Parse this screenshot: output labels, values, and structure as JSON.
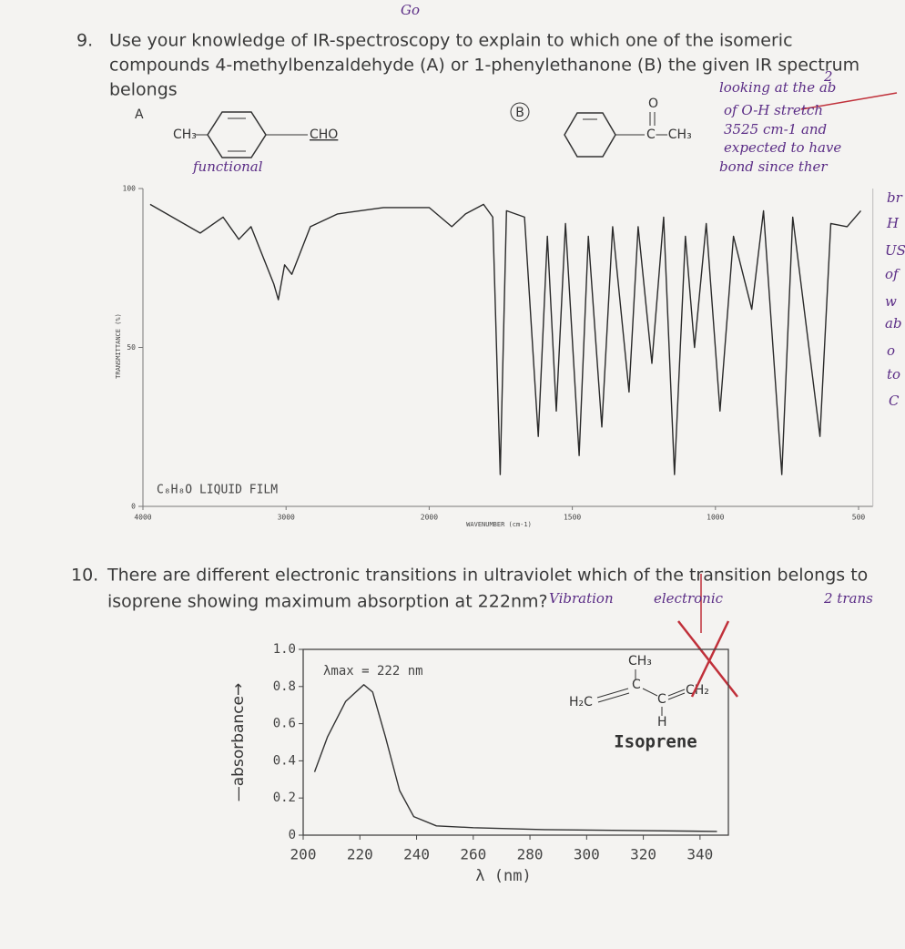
{
  "document": {
    "question_9": {
      "number": "9.",
      "lines": [
        "Use your knowledge of IR-spectroscopy to explain to which one of the isomeric",
        "compounds 4-methylbenzaldehyde (A) or 1-phenylethanone (B) the given IR spectrum",
        "belongs"
      ],
      "compound_a": {
        "label": "A",
        "left": "CH₃",
        "right": "CHO"
      },
      "compound_b": {
        "label": "B",
        "oxygen": "O",
        "group": "C—CH₃"
      }
    },
    "question_10": {
      "number": "10.",
      "lines": [
        "There are different electronic transitions in ultraviolet which of the transition belongs to",
        "isoprene showing maximum absorption at 222nm?"
      ],
      "isoprene": {
        "top": "CH₃",
        "left": "H₂C",
        "center": "C",
        "right": "CH₂",
        "bottom": "H",
        "name": "Isoprene"
      }
    },
    "handwriting": [
      "Go",
      "2",
      "looking at the ab",
      "of O-H stretch",
      "3525 cm-1 and",
      "expected to have",
      "bond since ther",
      "br",
      "H",
      "US",
      "of",
      "w",
      "ab",
      "o",
      "to",
      "C",
      "functional",
      "Vibration",
      "electronic",
      "2 trans"
    ]
  },
  "chart_data": [
    {
      "type": "line",
      "x_label": "WAVENUMBER (cm-1)",
      "y_label": "TRANSMITTANCE (%)",
      "annotation": "C₈H₈O  LIQUID FILM",
      "color": "#2a2a2a",
      "x": [
        3950,
        3600,
        3440,
        3330,
        3245,
        3086,
        3054,
        3010,
        2960,
        2830,
        2640,
        2320,
        2000,
        1921,
        1873,
        1810,
        1778,
        1752,
        1730,
        1667,
        1619,
        1587,
        1556,
        1524,
        1476,
        1444,
        1397,
        1359,
        1302,
        1270,
        1222,
        1181,
        1143,
        1105,
        1073,
        1032,
        984,
        937,
        873,
        832,
        768,
        730,
        635,
        597,
        540,
        492
      ],
      "values": [
        95,
        86,
        91,
        84,
        88,
        70,
        65,
        76,
        73,
        88,
        92,
        94,
        94,
        88,
        92,
        95,
        91,
        10,
        93,
        91,
        22,
        85,
        30,
        89,
        16,
        85,
        25,
        88,
        36,
        88,
        45,
        91,
        10,
        85,
        50,
        89,
        30,
        85,
        62,
        93,
        10,
        91,
        22,
        89,
        88,
        93
      ],
      "xlim": [
        4000,
        450
      ],
      "ylim": [
        0,
        100
      ],
      "xticks": [
        4000,
        3000,
        2000,
        1500,
        1000,
        500
      ],
      "yticks": [
        0,
        50,
        100
      ]
    },
    {
      "type": "line",
      "x_label": "λ (nm)",
      "y_label": "—absorbance→",
      "annotation": "λmax = 222 nm",
      "color": "#333",
      "x": [
        204,
        208.6,
        215,
        221.4,
        224.5,
        229,
        234,
        239,
        247,
        260,
        285,
        317,
        346
      ],
      "values": [
        0.34,
        0.53,
        0.72,
        0.81,
        0.77,
        0.53,
        0.24,
        0.1,
        0.05,
        0.04,
        0.03,
        0.025,
        0.02
      ],
      "xlim": [
        200,
        350
      ],
      "ylim": [
        0,
        1
      ],
      "xticks": [
        200,
        220,
        240,
        260,
        280,
        300,
        320,
        340
      ],
      "yticks": [
        0,
        0.2,
        0.4,
        0.6,
        0.8,
        {
          "value": 1,
          "label": "1.0"
        }
      ]
    }
  ]
}
